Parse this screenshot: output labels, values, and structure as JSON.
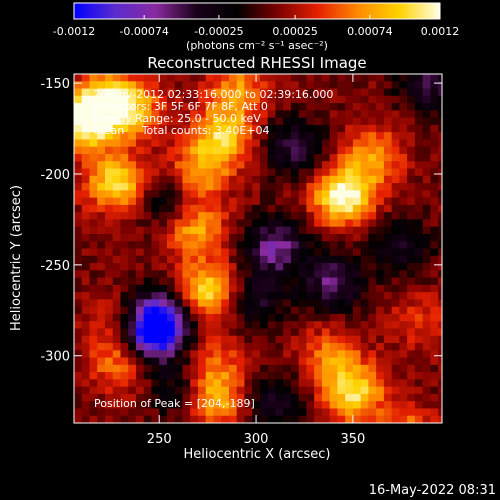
{
  "colorbar": {
    "ticks": [
      "-0.0012",
      "-0.00074",
      "-0.00025",
      "0.00025",
      "0.00074",
      "0.0012"
    ],
    "tick_values": [
      -0.0012,
      -0.00074,
      -0.00025,
      0.00025,
      0.00074,
      0.0012
    ],
    "unit_label": "(photons cm⁻² s⁻¹ asec⁻²)",
    "colormap": [
      "#0000ff",
      "#5a2bd0",
      "#8a2aa0",
      "#1a001a",
      "#000000",
      "#7a0000",
      "#e52000",
      "#ff8c00",
      "#ffd200",
      "#ffffe8"
    ]
  },
  "title": "Reconstructed RHESSI Image",
  "annotations": {
    "line1": "26-Nov-2012 02:33:16.000 to 02:39:16.000",
    "line2": "Detectors: 3F 5F 6F 7F 8F, Att 0",
    "line3": "Energy Range: 25.0 - 50.0 keV",
    "line4": "Clean     Total counts: 3.40E+04",
    "peak": "Position of Peak = [204,-189]"
  },
  "footer_timestamp": "16-May-2022 08:31",
  "chart_data": {
    "type": "heatmap",
    "title": "Reconstructed RHESSI Image",
    "xlabel": "Heliocentric X (arcsec)",
    "ylabel": "Heliocentric Y (arcsec)",
    "xlim": [
      206,
      396
    ],
    "ylim": [
      -337,
      -145
    ],
    "x_ticks": [
      250,
      300,
      350
    ],
    "y_ticks": [
      -150,
      -200,
      -250,
      -300
    ],
    "x_tick_labels": [
      "250",
      "300",
      "350"
    ],
    "y_tick_labels": [
      "-150",
      "-200",
      "-250",
      "-300"
    ],
    "value_range": [
      -0.0012,
      0.0012
    ],
    "peak_position": [
      204,
      -189
    ],
    "features": [
      {
        "x": 212,
        "y": -170,
        "level": 0.0012
      },
      {
        "x": 228,
        "y": -205,
        "level": 0.0009
      },
      {
        "x": 225,
        "y": -160,
        "level": 0.0008
      },
      {
        "x": 238,
        "y": -165,
        "level": 0.0005
      },
      {
        "x": 282,
        "y": -180,
        "level": 0.0008
      },
      {
        "x": 270,
        "y": -200,
        "level": 0.0006
      },
      {
        "x": 268,
        "y": -230,
        "level": 0.0007
      },
      {
        "x": 275,
        "y": -265,
        "level": 0.0009
      },
      {
        "x": 290,
        "y": -155,
        "level": 0.0006
      },
      {
        "x": 345,
        "y": -212,
        "level": 0.0011
      },
      {
        "x": 360,
        "y": -190,
        "level": 0.0006
      },
      {
        "x": 230,
        "y": -305,
        "level": 0.0005
      },
      {
        "x": 230,
        "y": -285,
        "level": 0.0004
      },
      {
        "x": 278,
        "y": -325,
        "level": 0.0007
      },
      {
        "x": 280,
        "y": -305,
        "level": 0.0004
      },
      {
        "x": 350,
        "y": -320,
        "level": 0.0009
      },
      {
        "x": 338,
        "y": -300,
        "level": 0.0005
      },
      {
        "x": 378,
        "y": -345,
        "level": 0.0006
      },
      {
        "x": 385,
        "y": -280,
        "level": 0.0003
      },
      {
        "x": 250,
        "y": -280,
        "level": -0.0012
      },
      {
        "x": 245,
        "y": -290,
        "level": -0.001
      },
      {
        "x": 255,
        "y": -215,
        "level": -0.0005
      },
      {
        "x": 320,
        "y": -185,
        "level": -0.0006
      },
      {
        "x": 310,
        "y": -240,
        "level": -0.0008
      },
      {
        "x": 340,
        "y": -260,
        "level": -0.0007
      },
      {
        "x": 375,
        "y": -240,
        "level": -0.0005
      },
      {
        "x": 300,
        "y": -270,
        "level": -0.0005
      },
      {
        "x": 390,
        "y": -150,
        "level": -0.0006
      },
      {
        "x": 260,
        "y": -320,
        "level": -0.0004
      },
      {
        "x": 310,
        "y": -325,
        "level": -0.0005
      }
    ]
  }
}
